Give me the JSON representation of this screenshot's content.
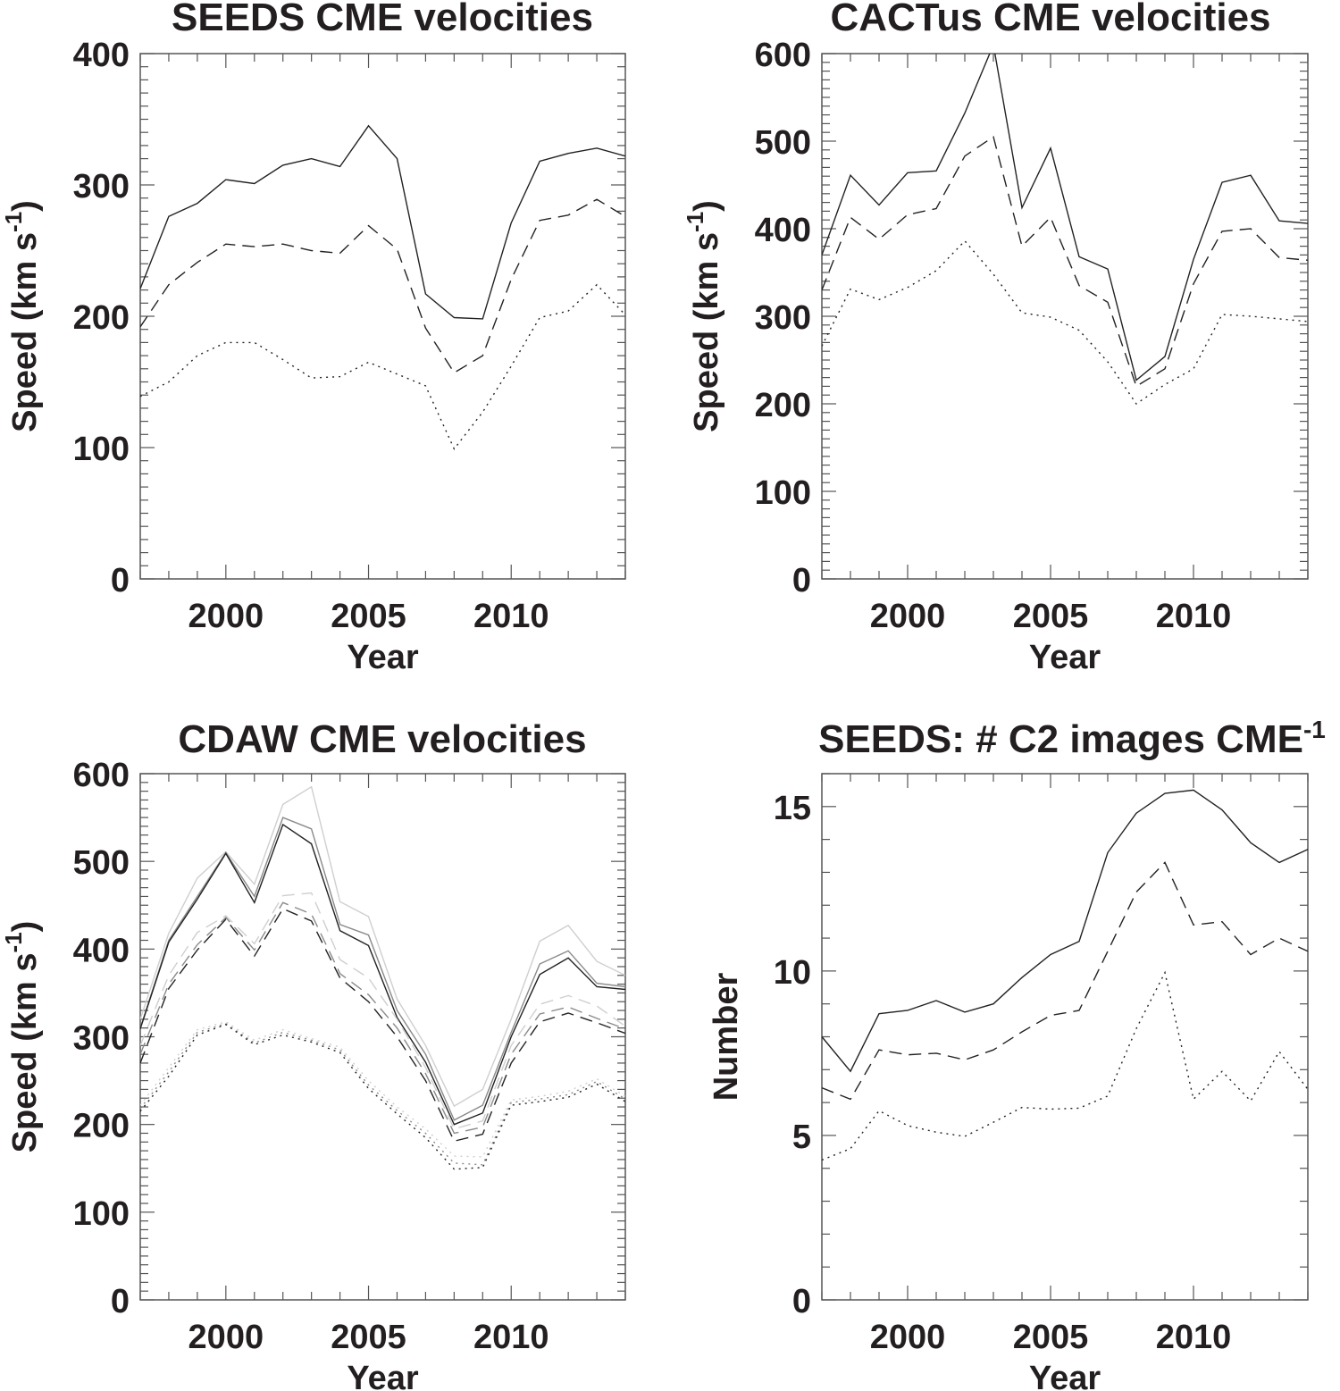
{
  "chart_data": [
    {
      "type": "line",
      "title": "SEEDS CME velocities",
      "xlabel": "Year",
      "ylabel": "Speed (km s",
      "ylabel_sup": "-1",
      "ylabel_tail": ")",
      "xlim": [
        1997,
        2014
      ],
      "ylim": [
        0,
        400
      ],
      "xticks": [
        2000,
        2005,
        2010
      ],
      "yticks": [
        0,
        100,
        200,
        300,
        400
      ],
      "x": [
        1997,
        1998,
        1999,
        2000,
        2001,
        2002,
        2003,
        2004,
        2005,
        2006,
        2007,
        2008,
        2009,
        2010,
        2011,
        2012,
        2013,
        2014
      ],
      "series": [
        {
          "name": "solid",
          "style": "solid",
          "color": "#222222",
          "values": [
            221,
            276,
            286,
            304,
            301,
            315,
            320,
            314,
            345,
            320,
            217,
            199,
            198,
            271,
            318,
            324,
            328,
            322
          ]
        },
        {
          "name": "dashed",
          "style": "dashed",
          "color": "#222222",
          "values": [
            192,
            224,
            241,
            255,
            253,
            255,
            250,
            248,
            269,
            251,
            191,
            157,
            170,
            228,
            273,
            277,
            289,
            276
          ]
        },
        {
          "name": "dotted",
          "style": "dotted",
          "color": "#222222",
          "values": [
            139,
            150,
            170,
            180,
            180,
            167,
            153,
            154,
            165,
            156,
            147,
            99,
            127,
            162,
            199,
            204,
            224,
            201
          ]
        }
      ]
    },
    {
      "type": "line",
      "title": "CACTus CME velocities",
      "xlabel": "Year",
      "ylabel": "Speed (km s",
      "ylabel_sup": "-1",
      "ylabel_tail": ")",
      "xlim": [
        1997,
        2014
      ],
      "ylim": [
        0,
        600
      ],
      "xticks": [
        2000,
        2005,
        2010
      ],
      "yticks": [
        0,
        100,
        200,
        300,
        400,
        500,
        600
      ],
      "x": [
        1997,
        1998,
        1999,
        2000,
        2001,
        2002,
        2003,
        2004,
        2005,
        2006,
        2007,
        2008,
        2009,
        2010,
        2011,
        2012,
        2013,
        2014
      ],
      "series": [
        {
          "name": "solid",
          "style": "solid",
          "color": "#222222",
          "values": [
            370,
            461,
            427,
            464,
            466,
            532,
            610,
            424,
            492,
            368,
            354,
            227,
            254,
            365,
            453,
            461,
            409,
            406
          ]
        },
        {
          "name": "dashed",
          "style": "dashed",
          "color": "#222222",
          "values": [
            330,
            413,
            388,
            416,
            423,
            483,
            505,
            380,
            413,
            335,
            316,
            220,
            240,
            337,
            397,
            400,
            367,
            364
          ]
        },
        {
          "name": "dotted",
          "style": "dotted",
          "color": "#222222",
          "values": [
            266,
            331,
            319,
            333,
            352,
            386,
            348,
            304,
            299,
            284,
            248,
            200,
            222,
            240,
            302,
            300,
            297,
            294
          ]
        }
      ]
    },
    {
      "type": "line",
      "title": "CDAW CME velocities",
      "xlabel": "Year",
      "ylabel": "Speed (km s",
      "ylabel_sup": "-1",
      "ylabel_tail": ")",
      "xlim": [
        1997,
        2014
      ],
      "ylim": [
        0,
        600
      ],
      "xticks": [
        2000,
        2005,
        2010
      ],
      "yticks": [
        0,
        100,
        200,
        300,
        400,
        500,
        600
      ],
      "x": [
        1997,
        1998,
        1999,
        2000,
        2001,
        2002,
        2003,
        2004,
        2005,
        2006,
        2007,
        2008,
        2009,
        2010,
        2011,
        2012,
        2013,
        2014
      ],
      "series": [
        {
          "name": "solid-light",
          "style": "solid",
          "color": "#cfcfcf",
          "values": [
            320,
            418,
            481,
            511,
            474,
            565,
            585,
            454,
            437,
            343,
            290,
            221,
            240,
            320,
            409,
            427,
            386,
            370
          ]
        },
        {
          "name": "solid-mid",
          "style": "solid",
          "color": "#8a8a8a",
          "values": [
            310,
            410,
            460,
            510,
            460,
            550,
            537,
            428,
            416,
            330,
            280,
            205,
            222,
            305,
            383,
            398,
            361,
            357
          ]
        },
        {
          "name": "solid-black",
          "style": "solid",
          "color": "#222222",
          "values": [
            309,
            408,
            457,
            509,
            453,
            542,
            520,
            421,
            404,
            322,
            271,
            200,
            213,
            300,
            371,
            390,
            357,
            354
          ]
        },
        {
          "name": "dashed-light",
          "style": "dashed",
          "color": "#cfcfcf",
          "values": [
            290,
            370,
            419,
            438,
            406,
            461,
            464,
            388,
            367,
            320,
            265,
            195,
            204,
            290,
            337,
            347,
            335,
            312
          ]
        },
        {
          "name": "dashed-mid",
          "style": "dashed",
          "color": "#8a8a8a",
          "values": [
            280,
            360,
            405,
            436,
            399,
            453,
            440,
            372,
            348,
            310,
            258,
            190,
            197,
            280,
            326,
            334,
            321,
            309
          ]
        },
        {
          "name": "dashed-black",
          "style": "dashed",
          "color": "#222222",
          "values": [
            270,
            355,
            399,
            434,
            392,
            446,
            432,
            367,
            340,
            300,
            250,
            181,
            189,
            270,
            317,
            327,
            316,
            304
          ]
        },
        {
          "name": "dotted-light",
          "style": "dotted",
          "color": "#cfcfcf",
          "values": [
            222,
            265,
            308,
            317,
            296,
            308,
            298,
            288,
            250,
            220,
            195,
            164,
            163,
            228,
            232,
            238,
            252,
            232
          ]
        },
        {
          "name": "dotted-mid",
          "style": "dotted",
          "color": "#8a8a8a",
          "values": [
            218,
            260,
            305,
            315,
            293,
            305,
            296,
            285,
            245,
            216,
            190,
            156,
            154,
            225,
            229,
            234,
            249,
            229
          ]
        },
        {
          "name": "dotted-black",
          "style": "dotted",
          "color": "#222222",
          "values": [
            215,
            255,
            302,
            314,
            291,
            302,
            294,
            282,
            241,
            212,
            185,
            149,
            151,
            222,
            226,
            231,
            246,
            226
          ]
        }
      ]
    },
    {
      "type": "line",
      "title": "SEEDS: # C2 images CME",
      "title_sup": "-1",
      "xlabel": "Year",
      "ylabel": "Number",
      "xlim": [
        1997,
        2014
      ],
      "ylim": [
        0,
        16
      ],
      "xticks": [
        2000,
        2005,
        2010
      ],
      "yticks": [
        0,
        5,
        10,
        15
      ],
      "x": [
        1997,
        1998,
        1999,
        2000,
        2001,
        2002,
        2003,
        2004,
        2005,
        2006,
        2007,
        2008,
        2009,
        2010,
        2011,
        2012,
        2013,
        2014
      ],
      "series": [
        {
          "name": "solid",
          "style": "solid",
          "color": "#222222",
          "values": [
            8.0,
            6.95,
            8.7,
            8.8,
            9.1,
            8.75,
            9.0,
            9.8,
            10.5,
            10.9,
            13.6,
            14.8,
            15.4,
            15.5,
            14.9,
            13.9,
            13.3,
            13.7
          ]
        },
        {
          "name": "dashed",
          "style": "dashed",
          "color": "#222222",
          "values": [
            6.45,
            6.1,
            7.6,
            7.45,
            7.5,
            7.3,
            7.6,
            8.15,
            8.65,
            8.8,
            10.6,
            12.4,
            13.3,
            11.4,
            11.5,
            10.5,
            11.0,
            10.6
          ]
        },
        {
          "name": "dotted",
          "style": "dotted",
          "color": "#222222",
          "values": [
            4.25,
            4.6,
            5.75,
            5.3,
            5.1,
            4.97,
            5.4,
            5.85,
            5.8,
            5.83,
            6.2,
            8.25,
            9.95,
            6.1,
            6.95,
            6.05,
            7.55,
            6.4
          ]
        }
      ]
    }
  ]
}
